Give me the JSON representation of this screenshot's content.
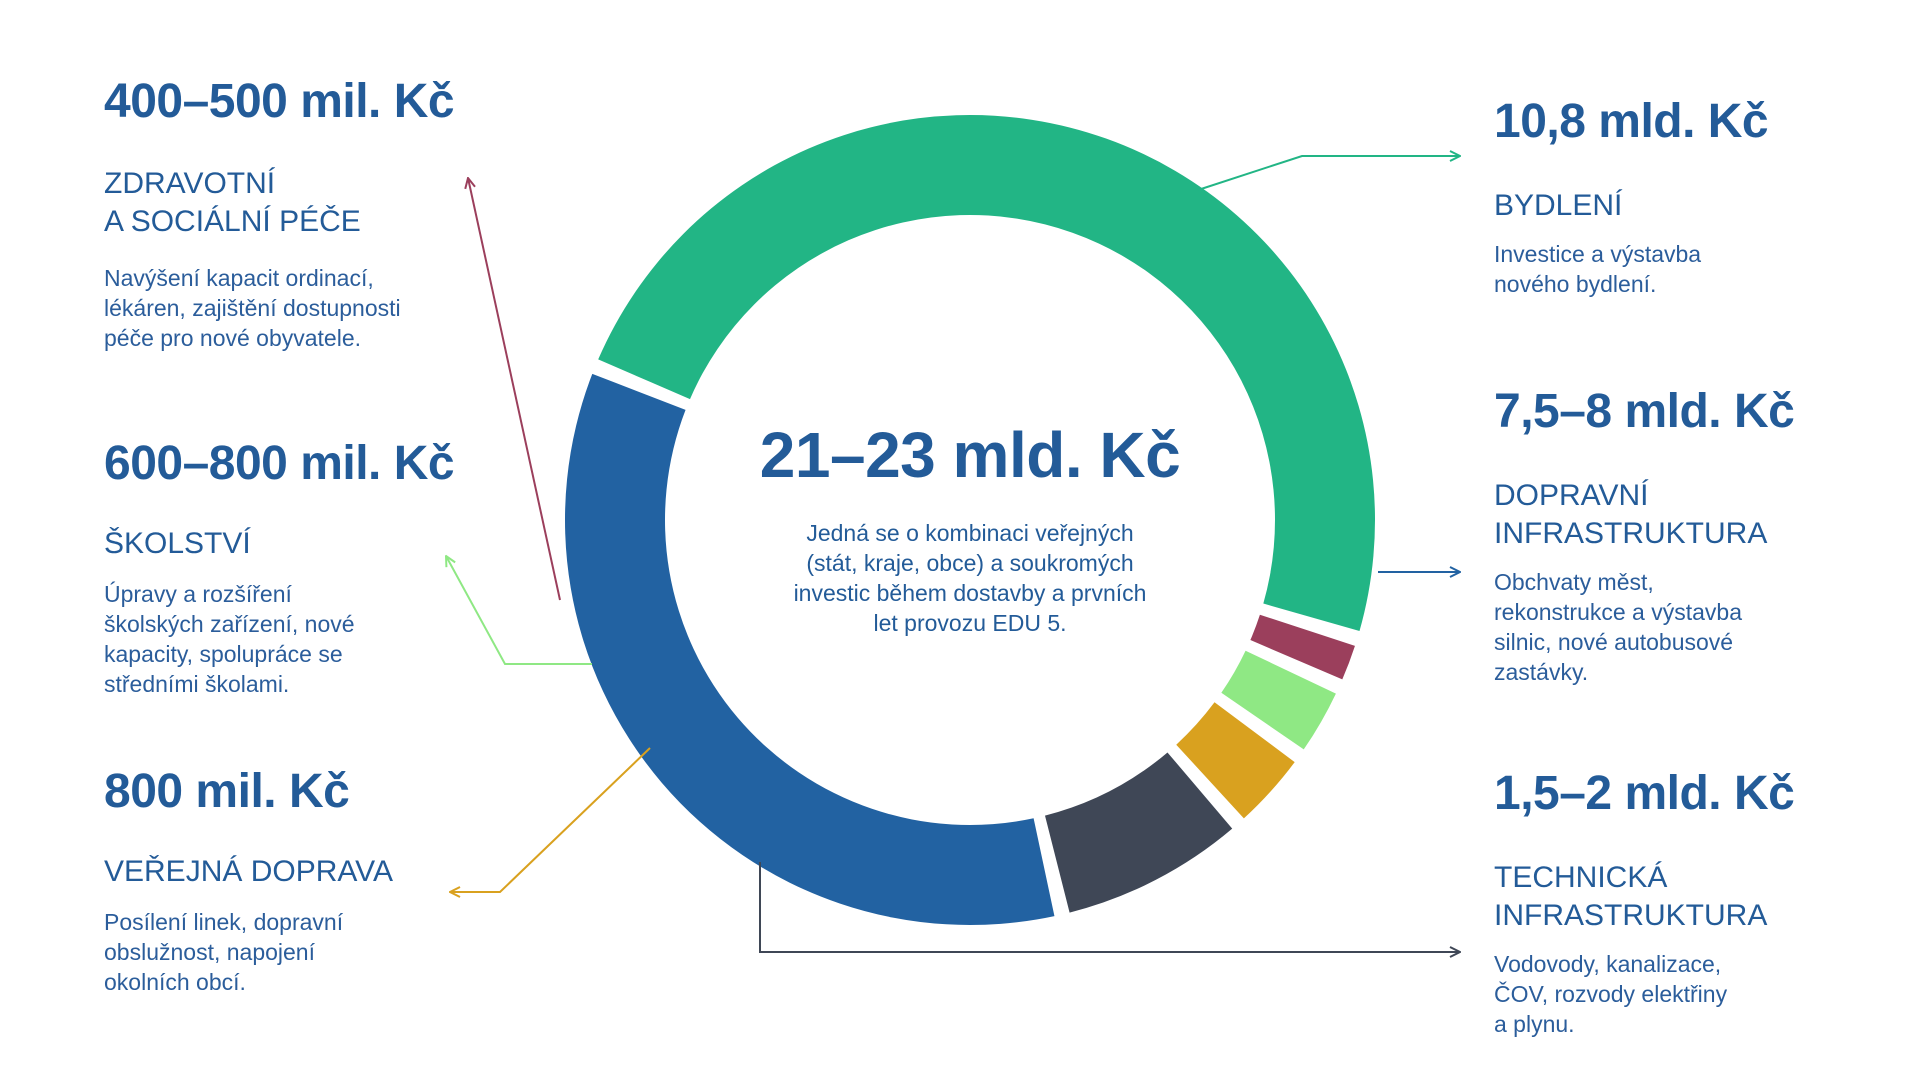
{
  "chart_data": {
    "type": "pie",
    "variant": "donut",
    "title": "21–23 mld. Kč",
    "subtitle": "Jedná se o kombinaci veřejných\n(stát, kraje, obce) a soukromých\ninvestic během dostavby a prvních\nlet provozu EDU 5.",
    "segments": [
      {
        "amount": "10,8 mld. Kč",
        "label": "BYDLENÍ",
        "description": "Investice a výstavba\nnového bydlení.",
        "value": 10.8,
        "color": "#22b585",
        "side": "right"
      },
      {
        "amount": "7,5–8 mld. Kč",
        "label": "DOPRAVNÍ\nINFRASTRUKTURA",
        "description": "Obchvaty měst,\nrekonstrukce a výstavba\nsilnic, nové autobusové\nzastávky.",
        "value": 7.75,
        "color": "#2262a2",
        "side": "right"
      },
      {
        "amount": "1,5–2 mld. Kč",
        "label": "TECHNICKÁ\nINFRASTRUKTURA",
        "description": "Vodovody, kanalizace,\nČOV, rozvody elektřiny\na plynu.",
        "value": 1.75,
        "color": "#3f4756",
        "side": "right"
      },
      {
        "amount": "800 mil. Kč",
        "label": "VEŘEJNÁ DOPRAVA",
        "description": "Posílení linek, dopravní\nobslužnost, napojení\nokolních obcí.",
        "value": 0.8,
        "color": "#d9a11f",
        "side": "left"
      },
      {
        "amount": "600–800 mil. Kč",
        "label": "ŠKOLSTVÍ",
        "description": "Úpravy a rozšíření\nškolských zařízení, nové\nkapacity, spolupráce se\nstředními školami.",
        "value": 0.7,
        "color": "#8fe884",
        "side": "left"
      },
      {
        "amount": "400–500 mil. Kč",
        "label": "ZDRAVOTNÍ\nA SOCIÁLNÍ PÉČE",
        "description": "Navýšení kapacit ordinací,\nlékáren, zajištění dostupnosti\npéče pro nové obyvatele.",
        "value": 0.45,
        "color": "#9b3f5c",
        "side": "left"
      }
    ]
  }
}
